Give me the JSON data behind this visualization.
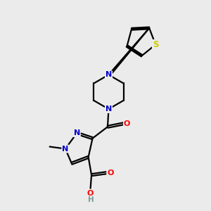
{
  "background_color": "#ebebeb",
  "bond_color": "#000000",
  "atom_colors": {
    "N": "#0000cc",
    "O": "#ff0000",
    "S": "#cccc00",
    "C": "#000000",
    "H": "#7a9a9a"
  },
  "figsize": [
    3.0,
    3.0
  ],
  "dpi": 100,
  "bond_lw": 1.6,
  "font_size": 8.0
}
